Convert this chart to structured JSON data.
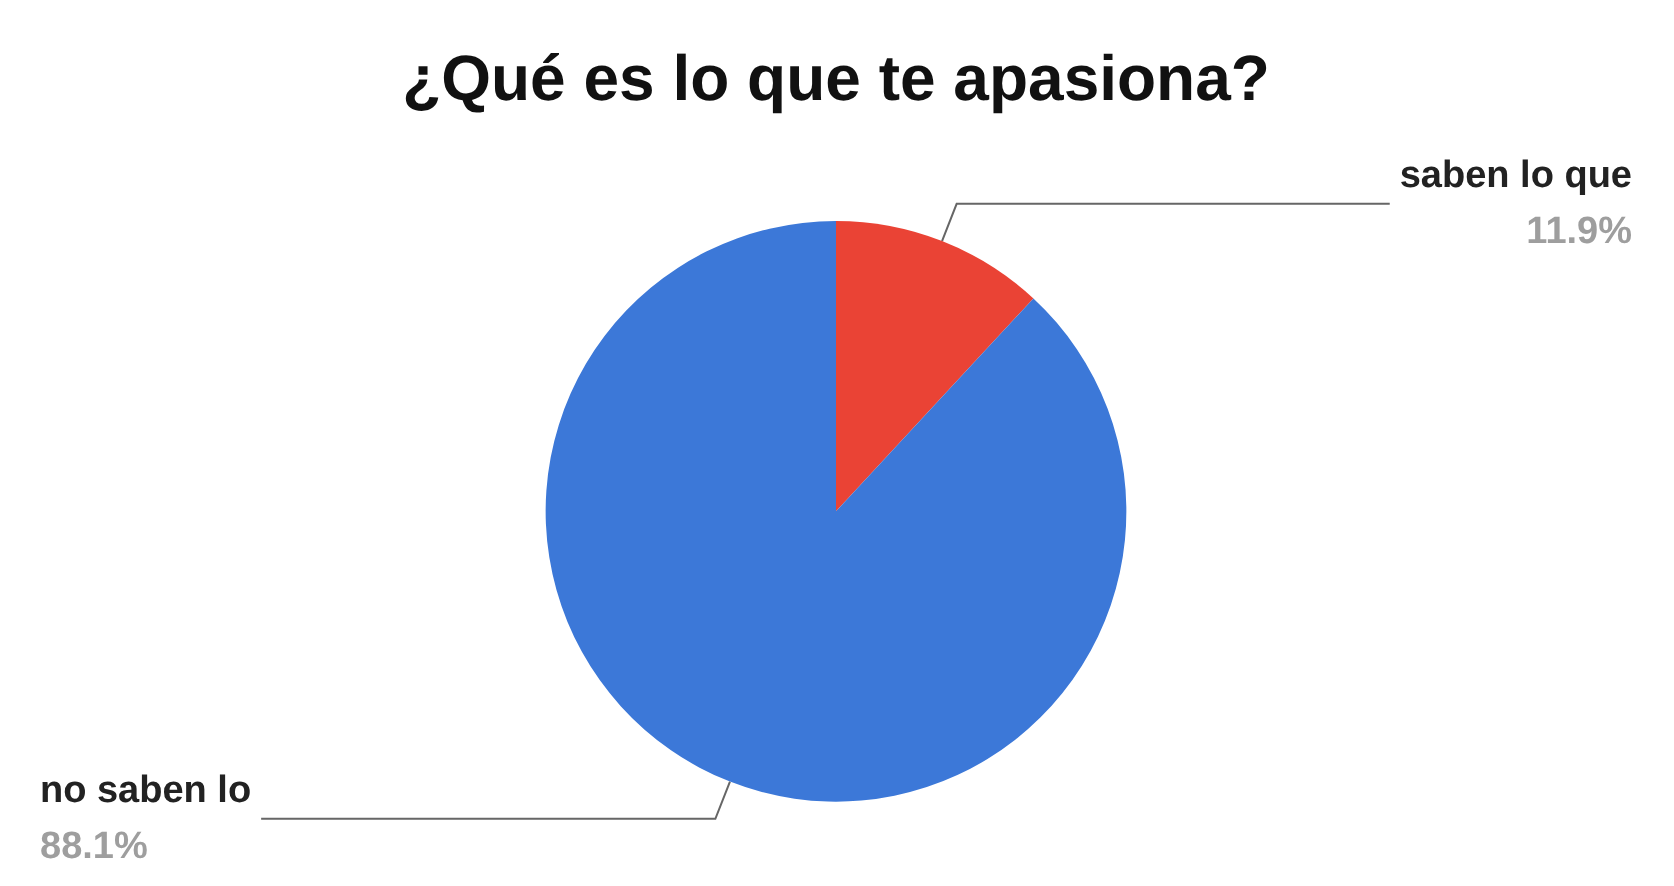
{
  "chart_data": {
    "type": "pie",
    "title": "¿Qué es lo que te apasiona?",
    "categories": [
      "saben lo que",
      "no saben lo"
    ],
    "values": [
      11.9,
      88.1
    ],
    "value_labels": [
      "11.9%",
      "88.1%"
    ],
    "colors": [
      "#ea4335",
      "#3c78d8"
    ],
    "legend": false
  }
}
